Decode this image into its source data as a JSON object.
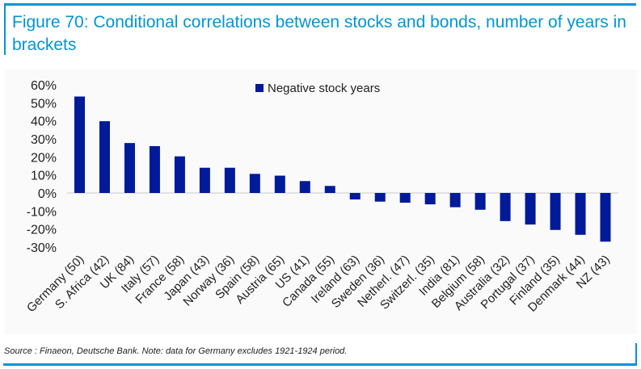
{
  "title": "Figure 70: Conditional correlations between stocks and bonds, number of years in brackets",
  "source": "Source : Finaeon, Deutsche Bank. Note: data for Germany excludes 1921-1924 period.",
  "colors": {
    "bar": "#001a9a",
    "accent": "#0096d6"
  },
  "chart_data": {
    "type": "bar",
    "title": "Figure 70: Conditional correlations between stocks and bonds, number of years in brackets",
    "legend": {
      "position": "top-center",
      "entries": [
        "Negative stock years"
      ]
    },
    "categories": [
      "Germany (50)",
      "S. Africa (42)",
      "UK (84)",
      "Italy (57)",
      "France (58)",
      "Japan (43)",
      "Norway (36)",
      "Spain (58)",
      "Austria (65)",
      "US (41)",
      "Canada (55)",
      "Ireland (63)",
      "Sweden (36)",
      "Netherl. (47)",
      "Switzerl. (35)",
      "India (81)",
      "Belgium (58)",
      "Australia (32)",
      "Portugal (37)",
      "Finland (35)",
      "Denmark (44)",
      "NZ (43)"
    ],
    "series": [
      {
        "name": "Negative stock years",
        "values": [
          53.5,
          39.8,
          27.7,
          26.0,
          20.3,
          14.0,
          14.0,
          10.6,
          9.6,
          6.6,
          3.9,
          -3.6,
          -4.8,
          -5.4,
          -6.3,
          -7.9,
          -9.3,
          -15.6,
          -17.5,
          -20.5,
          -23.2,
          -27.0
        ]
      }
    ],
    "ylim": [
      -30,
      60
    ],
    "yticks": [
      60,
      50,
      40,
      30,
      20,
      10,
      0,
      -10,
      -20,
      -30
    ],
    "ytick_labels": [
      "60%",
      "50%",
      "40%",
      "30%",
      "20%",
      "10%",
      "0%",
      "-10%",
      "-20%",
      "-30%"
    ],
    "xlabel": "",
    "ylabel": "",
    "grid": false
  }
}
